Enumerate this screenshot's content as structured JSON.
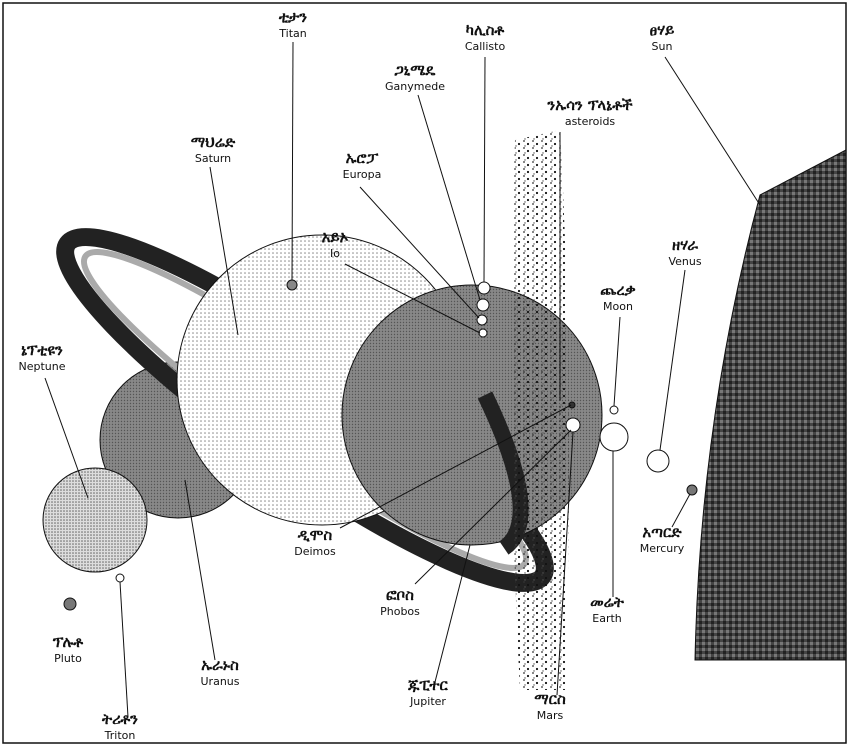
{
  "labels": [
    {
      "amharic": "ቲታን",
      "english": "Titan"
    },
    {
      "amharic": "ካሊስቶ",
      "english": "Callisto"
    },
    {
      "amharic": "ፀሃይ",
      "english": "Sun"
    },
    {
      "amharic": "ጋኒሜዴ",
      "english": "Ganymede"
    },
    {
      "amharic": "ንኡሳን ፕላኔቶች",
      "english": "asteroids"
    },
    {
      "amharic": "ማህሬድ",
      "english": "Saturn"
    },
    {
      "amharic": "ኡሮፓ",
      "english": "Europa"
    },
    {
      "amharic": "አይኦ",
      "english": "Io"
    },
    {
      "amharic": "ጨረቃ",
      "english": "Moon"
    },
    {
      "amharic": "ዘሃራ",
      "english": "Venus"
    },
    {
      "amharic": "ኔፕቲዩን",
      "english": "Neptune"
    },
    {
      "amharic": "ዲሞስ",
      "english": "Deimos"
    },
    {
      "amharic": "ፎቦስ",
      "english": "Phobos"
    },
    {
      "amharic": "አጣርድ",
      "english": "Mercury"
    },
    {
      "amharic": "መሬት",
      "english": "Earth"
    },
    {
      "amharic": "ፕሉቶ",
      "english": "Pluto"
    },
    {
      "amharic": "ኡራኑስ",
      "english": "Uranus"
    },
    {
      "amharic": "ጁፒተር",
      "english": "Jupiter"
    },
    {
      "amharic": "ማርስ",
      "english": "Mars"
    },
    {
      "amharic": "ትሪቶን",
      "english": "Triton"
    }
  ]
}
